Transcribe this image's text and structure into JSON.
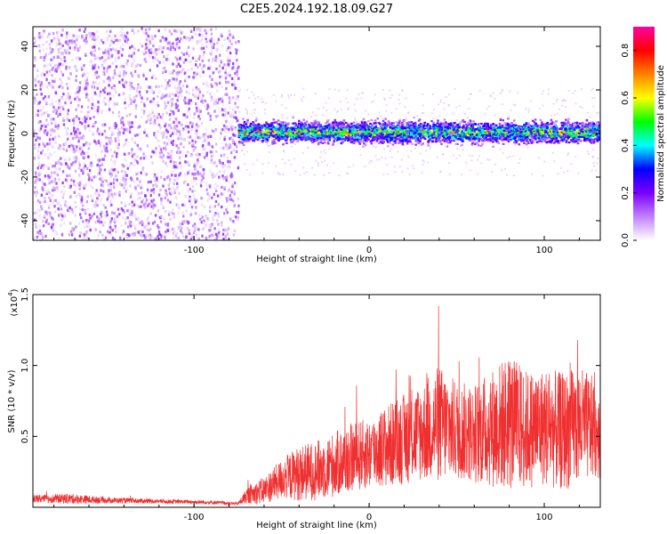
{
  "chart_data": [
    {
      "type": "heatmap",
      "title": "C2E5.2024.192.18.09.G27",
      "xlabel": "Height of straight line (km)",
      "ylabel": "Frequency (Hz)",
      "xlim": [
        -192,
        132
      ],
      "ylim": [
        -49,
        49
      ],
      "x_ticks": [
        -100,
        0,
        100
      ],
      "y_ticks": [
        -40,
        -20,
        0,
        20,
        40
      ],
      "colorbar": {
        "label": "Normalized spectral amplitude",
        "range": [
          0.0,
          0.9
        ],
        "ticks": [
          "0.0",
          "0.2",
          "0.4",
          "0.6",
          "0.8"
        ],
        "colors": [
          "#ffffff",
          "#c080ff",
          "#7a00ff",
          "#0000ff",
          "#00ffff",
          "#00ff00",
          "#ffff00",
          "#ff8000",
          "#ff0000",
          "#ff00a0"
        ]
      },
      "regions": [
        {
          "x_range": [
            -192,
            -75
          ],
          "freq_range": [
            -49,
            49
          ],
          "amplitude": "0.05-0.15",
          "description": "noise"
        },
        {
          "x_range": [
            -75,
            132
          ],
          "center_freq_hz": 1.0,
          "band_half_width_hz": 5,
          "peak_amplitude": 0.9
        }
      ]
    },
    {
      "type": "line",
      "xlabel": "Height of straight line (km)",
      "ylabel": "SNR (10 * v/v)",
      "y_multiplier": "(x10",
      "y_exponent": "4",
      "xlim": [
        -192,
        132
      ],
      "ylim": [
        0,
        15000
      ],
      "x_ticks": [
        -100,
        0,
        100
      ],
      "y_ticks": [
        "0.5",
        "1.0",
        "1.5"
      ],
      "color": "#f03030",
      "series": [
        {
          "x": [
            -190,
            -170,
            -150,
            -130,
            -110,
            -90,
            -75,
            -70,
            -60,
            -50,
            -40,
            -30,
            -20,
            -10,
            0,
            10,
            20,
            30,
            40,
            50,
            60,
            70,
            80,
            90,
            100,
            110,
            120,
            130
          ],
          "y": [
            600,
            600,
            500,
            450,
            400,
            350,
            250,
            800,
            1200,
            2000,
            2400,
            2600,
            3000,
            3500,
            3800,
            4300,
            4800,
            5300,
            5900,
            5400,
            5200,
            5600,
            6000,
            5500,
            5700,
            5300,
            5800,
            5500
          ],
          "spread": [
            400,
            500,
            300,
            250,
            200,
            200,
            150,
            800,
            1400,
            2000,
            2800,
            3000,
            3300,
            3500,
            3600,
            4200,
            4600,
            5000,
            6000,
            5000,
            5000,
            6000,
            7000,
            6000,
            6000,
            6000,
            6000,
            5000
          ]
        }
      ]
    }
  ]
}
